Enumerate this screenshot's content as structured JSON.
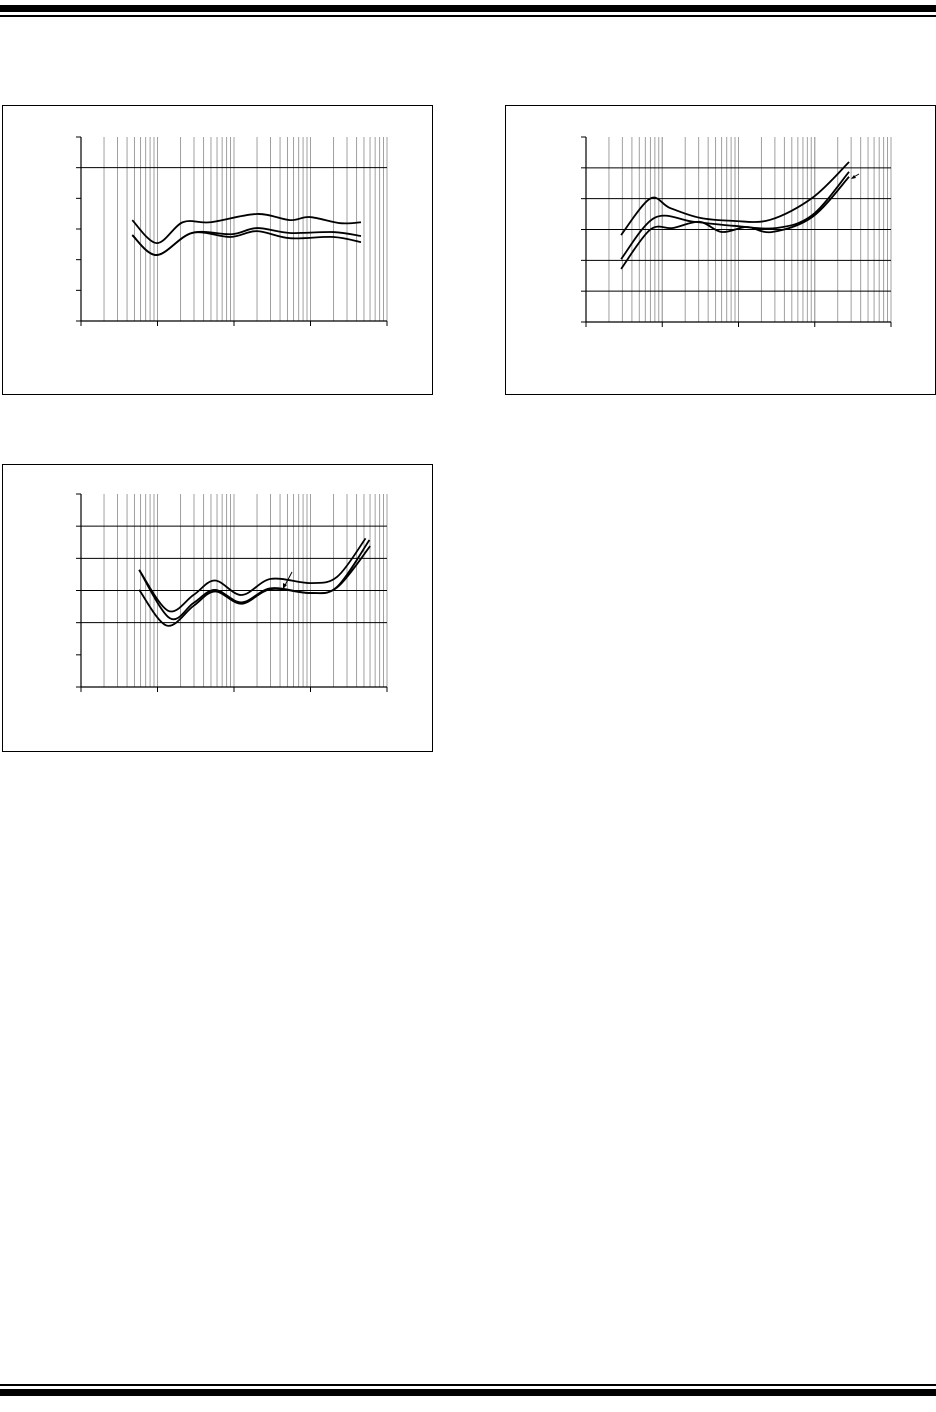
{
  "chart_data": [
    {
      "type": "line",
      "x_scale": "log",
      "x_range_decades": [
        0,
        4
      ],
      "y_range_divisions": [
        0,
        6
      ],
      "major_y_gridlines": [
        5
      ],
      "grid": true,
      "series": [
        {
          "x": [
            0.67,
            0.99,
            1.33,
            1.69,
            2.3,
            2.73,
            2.99,
            3.39,
            3.66
          ],
          "y": [
            3.29,
            2.54,
            3.22,
            3.22,
            3.49,
            3.29,
            3.39,
            3.19,
            3.22
          ]
        },
        {
          "x": [
            0.67,
            0.99,
            1.45,
            1.97,
            2.3,
            2.73,
            3.3,
            3.66
          ],
          "y": [
            2.8,
            2.15,
            2.87,
            2.83,
            3.03,
            2.87,
            2.9,
            2.77
          ]
        },
        {
          "x": [
            0.67,
            0.99,
            1.45,
            1.95,
            2.3,
            2.73,
            3.3,
            3.66
          ],
          "y": [
            2.8,
            2.15,
            2.87,
            2.74,
            2.93,
            2.7,
            2.74,
            2.57
          ]
        }
      ]
    },
    {
      "type": "line",
      "x_scale": "log",
      "x_range_decades": [
        0,
        4
      ],
      "y_range_divisions": [
        0,
        6
      ],
      "major_y_gridlines": [
        1,
        2,
        3,
        4,
        5
      ],
      "grid": true,
      "series": [
        {
          "x": [
            0.46,
            0.84,
            1.1,
            1.49,
            1.93,
            2.41,
            2.97,
            3.45
          ],
          "y": [
            2.82,
            4.0,
            3.7,
            3.38,
            3.28,
            3.31,
            4.03,
            5.19
          ]
        },
        {
          "x": [
            0.46,
            0.9,
            1.41,
            1.93,
            2.5,
            2.97,
            3.45
          ],
          "y": [
            2.04,
            3.38,
            3.25,
            3.12,
            3.05,
            3.47,
            4.87
          ]
        },
        {
          "x": [
            0.46,
            0.84,
            1.14,
            1.49,
            1.78,
            2.11,
            2.44,
            2.97,
            3.45
          ],
          "y": [
            1.72,
            2.99,
            3.05,
            3.25,
            2.92,
            3.08,
            2.92,
            3.41,
            4.71
          ]
        }
      ]
    },
    {
      "type": "line",
      "x_scale": "log",
      "x_range_decades": [
        0,
        4
      ],
      "y_range_divisions": [
        0,
        6
      ],
      "major_y_gridlines": [
        2,
        3,
        4,
        5
      ],
      "grid": true,
      "series": [
        {
          "x": [
            0.76,
            1.14,
            1.47,
            1.75,
            2.1,
            2.48,
            3.0,
            3.35,
            3.72
          ],
          "y": [
            3.64,
            2.37,
            2.86,
            3.31,
            2.86,
            3.36,
            3.23,
            3.43,
            4.62
          ]
        },
        {
          "x": [
            0.76,
            1.16,
            1.47,
            1.75,
            2.1,
            2.48,
            3.0,
            3.35,
            3.77
          ],
          "y": [
            3.64,
            2.14,
            2.61,
            3.02,
            2.63,
            3.07,
            2.92,
            3.12,
            4.57
          ]
        },
        {
          "x": [
            0.76,
            1.12,
            1.47,
            1.75,
            2.1,
            2.48,
            3.0,
            3.35,
            3.78
          ],
          "y": [
            3.02,
            1.91,
            2.52,
            2.97,
            2.59,
            3.04,
            2.92,
            3.1,
            4.38
          ]
        }
      ]
    }
  ],
  "colors": {
    "ink": "#000000",
    "minor_grid": "#a0a0a0"
  }
}
